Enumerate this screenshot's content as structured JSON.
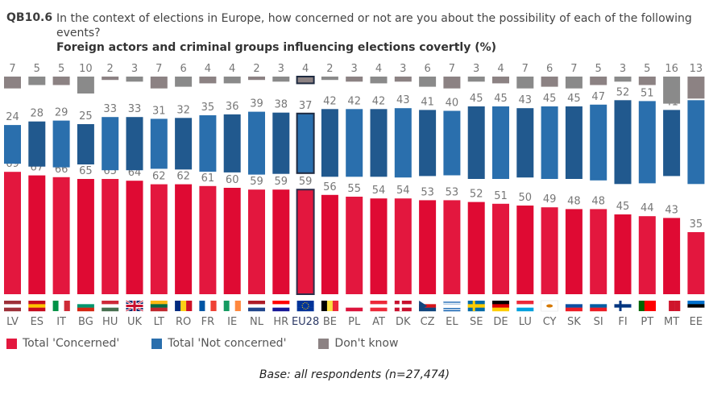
{
  "header": {
    "question_id": "QB10.6",
    "question": "In the context of elections in Europe, how concerned or not are you about the possibility of each of the following events?",
    "subtitle": "Foreign actors and criminal groups influencing elections covertly (%)"
  },
  "legend": [
    {
      "label": "Total 'Concerned'",
      "color": "#e3173e"
    },
    {
      "label": "Total 'Not concerned'",
      "color": "#2a6fad"
    },
    {
      "label": "Don't know",
      "color": "#8c8283"
    }
  ],
  "footer": {
    "base": "Base: all respondents (n=27,474)"
  },
  "chart_data": {
    "type": "bar",
    "title": "Foreign actors and criminal groups influencing elections covertly (%)",
    "xlabel": "",
    "ylabel": "",
    "categories": [
      "LV",
      "ES",
      "IT",
      "BG",
      "HU",
      "UK",
      "LT",
      "RO",
      "FR",
      "IE",
      "NL",
      "HR",
      "EU28",
      "BE",
      "PL",
      "AT",
      "DK",
      "CZ",
      "EL",
      "SE",
      "DE",
      "LU",
      "CY",
      "SK",
      "SI",
      "FI",
      "PT",
      "MT",
      "EE"
    ],
    "highlight": "EU28",
    "series": [
      {
        "name": "Total 'Concerned'",
        "color": "#e3173e",
        "values": [
          69,
          67,
          66,
          65,
          65,
          64,
          62,
          62,
          61,
          60,
          59,
          59,
          59,
          56,
          55,
          54,
          54,
          53,
          53,
          52,
          51,
          50,
          49,
          48,
          48,
          45,
          44,
          43,
          35
        ]
      },
      {
        "name": "Total 'Not concerned'",
        "color": "#2a6fad",
        "values": [
          24,
          28,
          29,
          25,
          33,
          33,
          31,
          32,
          35,
          36,
          39,
          38,
          37,
          42,
          42,
          42,
          43,
          41,
          40,
          45,
          45,
          43,
          45,
          45,
          47,
          52,
          51,
          41,
          52
        ]
      },
      {
        "name": "Don't know",
        "color": "#8c8283",
        "values": [
          7,
          5,
          5,
          10,
          2,
          3,
          7,
          6,
          4,
          4,
          2,
          3,
          4,
          2,
          3,
          4,
          3,
          6,
          7,
          3,
          4,
          7,
          6,
          7,
          5,
          3,
          5,
          16,
          13
        ]
      }
    ],
    "ylim": [
      0,
      100
    ],
    "grid": false,
    "legend_position": "bottom-left"
  }
}
